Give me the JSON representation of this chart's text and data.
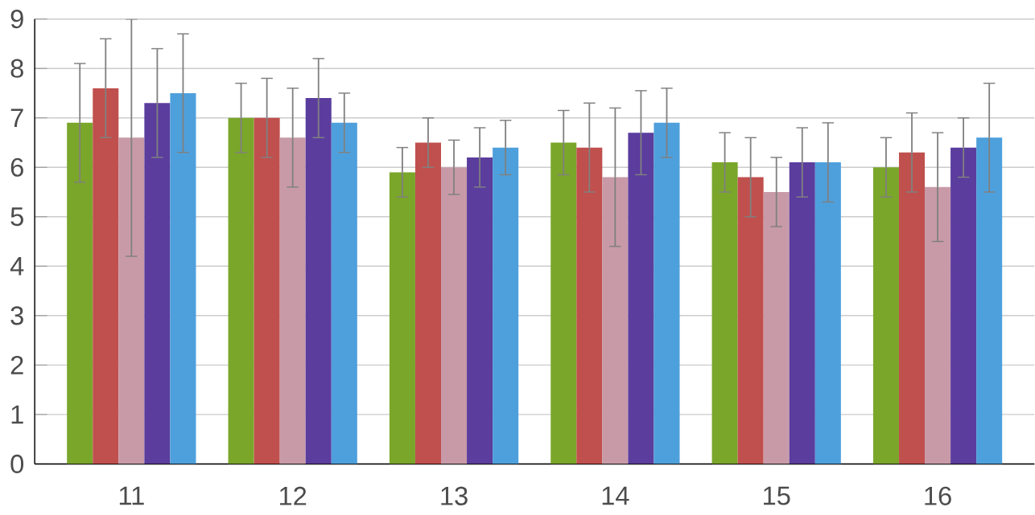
{
  "chart_data": {
    "type": "bar",
    "categories": [
      "11",
      "12",
      "13",
      "14",
      "15",
      "16"
    ],
    "series": [
      {
        "color": "#7aa62a",
        "values": [
          6.9,
          7.0,
          5.9,
          6.5,
          6.1,
          6.0
        ],
        "errors": [
          1.2,
          0.7,
          0.5,
          0.65,
          0.6,
          0.6
        ]
      },
      {
        "color": "#c0504d",
        "values": [
          7.6,
          7.0,
          6.5,
          6.4,
          5.8,
          6.3
        ],
        "errors": [
          1.0,
          0.8,
          0.5,
          0.9,
          0.8,
          0.8
        ]
      },
      {
        "color": "#c89aa8",
        "values": [
          6.6,
          6.6,
          6.0,
          5.8,
          5.5,
          5.6
        ],
        "errors": [
          2.4,
          1.0,
          0.55,
          1.4,
          0.7,
          1.1
        ]
      },
      {
        "color": "#5b3d9e",
        "values": [
          7.3,
          7.4,
          6.2,
          6.7,
          6.1,
          6.4
        ],
        "errors": [
          1.1,
          0.8,
          0.6,
          0.85,
          0.7,
          0.6
        ]
      },
      {
        "color": "#4ea0dc",
        "values": [
          7.5,
          6.9,
          6.4,
          6.9,
          6.1,
          6.6
        ],
        "errors": [
          1.2,
          0.6,
          0.55,
          0.7,
          0.8,
          1.1
        ]
      }
    ],
    "ylim": [
      0,
      9
    ],
    "yticks": [
      0,
      1,
      2,
      3,
      4,
      5,
      6,
      7,
      8,
      9
    ],
    "grid": "y"
  }
}
